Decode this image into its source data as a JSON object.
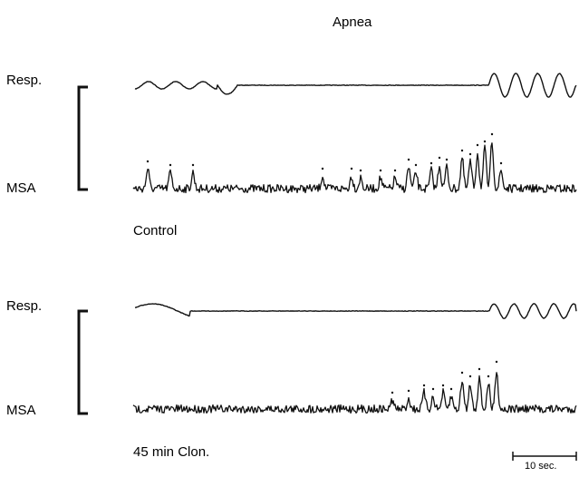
{
  "chart_data": {
    "type": "line",
    "title": "Apnea",
    "panels": [
      {
        "condition_label": "Control",
        "series": [
          {
            "name": "Resp.",
            "kind": "respiration"
          },
          {
            "name": "MSA",
            "kind": "sympathetic-activity",
            "bursts_marked": true
          }
        ]
      },
      {
        "condition_label": "45 min Clon.",
        "series": [
          {
            "name": "Resp.",
            "kind": "respiration"
          },
          {
            "name": "MSA",
            "kind": "sympathetic-activity",
            "bursts_marked": true
          }
        ]
      }
    ],
    "scale_bar": {
      "label": "10 sec.",
      "value": 10,
      "unit": "sec"
    }
  },
  "colors": {
    "trace": "#111111",
    "background": "#ffffff"
  }
}
